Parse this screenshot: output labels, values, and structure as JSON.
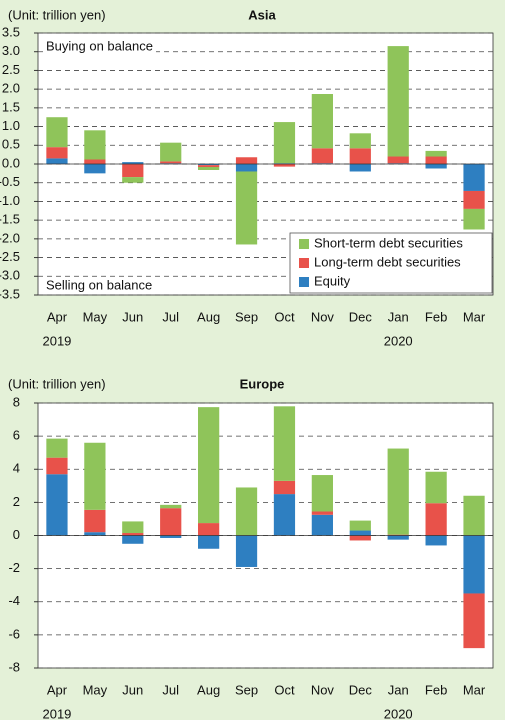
{
  "chart_data": [
    {
      "type": "stacked_bar",
      "title": "Asia",
      "unit": "(Unit: trillion yen)",
      "annotations": [
        "Buying on balance",
        "Selling on balance"
      ],
      "categories": [
        "Apr",
        "May",
        "Jun",
        "Jul",
        "Aug",
        "Sep",
        "Oct",
        "Nov",
        "Dec",
        "Jan",
        "Feb",
        "Mar"
      ],
      "year_labels": [
        "2019",
        "2020"
      ],
      "series": [
        {
          "name": "Equity",
          "color": "#2e7fc1",
          "values": [
            0.15,
            -0.25,
            0.05,
            0.02,
            -0.03,
            -0.2,
            0.02,
            0.02,
            -0.2,
            0.02,
            -0.12,
            -0.72
          ]
        },
        {
          "name": "Long-term debt securities",
          "color": "#e8524a",
          "values": [
            0.3,
            0.12,
            -0.35,
            0.05,
            -0.05,
            0.18,
            -0.07,
            0.4,
            0.42,
            0.18,
            0.2,
            -0.48
          ]
        },
        {
          "name": "Short-term debt securities",
          "color": "#8fc45a",
          "values": [
            0.8,
            0.78,
            -0.15,
            0.5,
            -0.08,
            -1.95,
            1.1,
            1.45,
            0.4,
            2.95,
            0.15,
            -0.55
          ]
        }
      ],
      "ylim": [
        -3.5,
        3.5
      ],
      "yticks": [
        3.5,
        {
          "value": 3,
          "label": "3.0"
        },
        2.5,
        {
          "value": 2,
          "label": "2.0"
        },
        1.5,
        {
          "value": 1,
          "label": "1.0"
        },
        0.5,
        {
          "value": 0,
          "label": "0.0"
        },
        -0.5,
        {
          "value": -1,
          "label": "-1.0"
        },
        -1.5,
        {
          "value": -2,
          "label": "-2.0"
        },
        -2.5,
        {
          "value": -3,
          "label": "-3.0"
        },
        -3.5
      ],
      "grid": true,
      "legend": "lower right"
    },
    {
      "type": "stacked_bar",
      "title": "Europe",
      "unit": "(Unit: trillion yen)",
      "categories": [
        "Apr",
        "May",
        "Jun",
        "Jul",
        "Aug",
        "Sep",
        "Oct",
        "Nov",
        "Dec",
        "Jan",
        "Feb",
        "Mar"
      ],
      "year_labels": [
        "2019",
        "2020"
      ],
      "series": [
        {
          "color": "#2e7fc1",
          "values": [
            3.7,
            0.2,
            -0.5,
            -0.15,
            -0.8,
            -1.9,
            2.5,
            1.25,
            0.3,
            -0.25,
            -0.6,
            -3.5
          ]
        },
        {
          "color": "#e8524a",
          "values": [
            1.0,
            1.35,
            0.15,
            1.65,
            0.75,
            0,
            0.8,
            0.2,
            -0.3,
            0.05,
            1.95,
            -3.3
          ]
        },
        {
          "color": "#8fc45a",
          "values": [
            1.15,
            4.05,
            0.7,
            0.2,
            7.0,
            2.9,
            4.5,
            2.2,
            0.6,
            5.2,
            1.9,
            2.4
          ]
        }
      ],
      "ylim": [
        -8,
        8
      ],
      "yticks": [
        8,
        6,
        4,
        2,
        0,
        -2,
        -4,
        -6,
        -8
      ],
      "grid": true
    }
  ]
}
